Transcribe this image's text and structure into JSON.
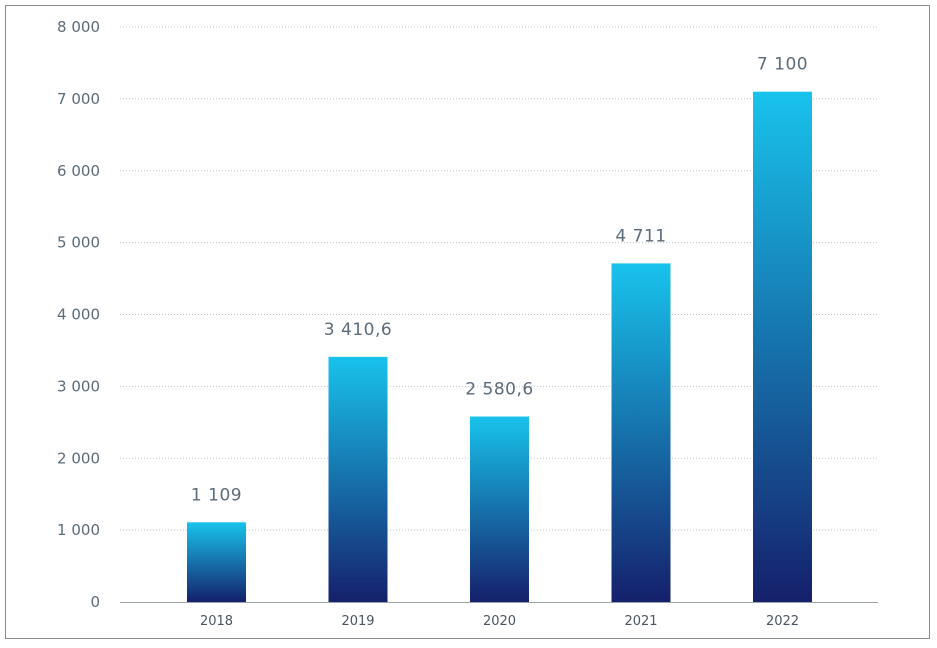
{
  "chart_data": {
    "type": "bar",
    "categories": [
      "2018",
      "2019",
      "2020",
      "2021",
      "2022"
    ],
    "values": [
      1109,
      3410.6,
      2580.6,
      4711,
      7100
    ],
    "data_labels": [
      "1 109",
      "3 410,6",
      "2 580,6",
      "4 711",
      "7 100"
    ],
    "yticks": [
      "0",
      "1 000",
      "2 000",
      "3 000",
      "4 000",
      "5 000",
      "6 000",
      "7 000",
      "8 000"
    ],
    "ylim": [
      0,
      8000
    ],
    "grid": true,
    "legend": "none",
    "colors": {
      "bar_top": "#18c3ec",
      "bar_bottom": "#15206b",
      "grid": "#bfc5cc",
      "axis": "#9aa2aa",
      "text": "#5b6b7a"
    }
  }
}
